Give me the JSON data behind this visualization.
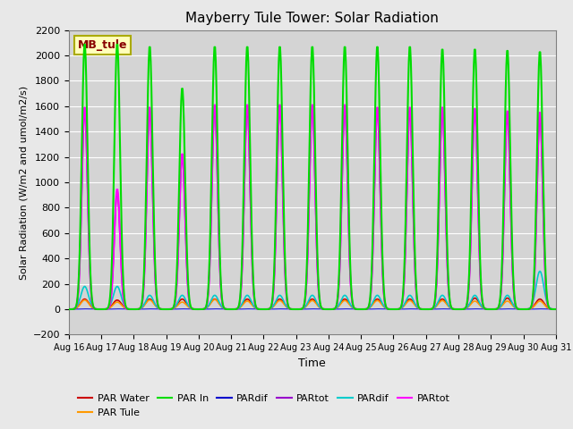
{
  "title": "Mayberry Tule Tower: Solar Radiation",
  "xlabel": "Time",
  "ylabel": "Solar Radiation (W/m2 and umol/m2/s)",
  "ylim": [
    -200,
    2200
  ],
  "yticks": [
    -200,
    0,
    200,
    400,
    600,
    800,
    1000,
    1200,
    1400,
    1600,
    1800,
    2000,
    2200
  ],
  "date_start": 16,
  "n_days": 15,
  "bg_color": "#e8e8e8",
  "plot_bg_color": "#d4d4d4",
  "legend_label": "MB_tule",
  "par_in_peaks": [
    2100,
    2100,
    2080,
    1750,
    2080,
    2080,
    2080,
    2080,
    2080,
    2080,
    2080,
    2060,
    2060,
    2050,
    2040
  ],
  "par_mag_peaks": [
    1600,
    950,
    1600,
    1230,
    1620,
    1620,
    1620,
    1620,
    1620,
    1600,
    1600,
    1600,
    1590,
    1570,
    1560
  ],
  "par_cyan_peaks": [
    180,
    180,
    110,
    110,
    110,
    110,
    110,
    110,
    110,
    110,
    110,
    110,
    110,
    110,
    300
  ],
  "par_water_peaks": [
    80,
    72,
    80,
    80,
    80,
    80,
    80,
    80,
    80,
    80,
    80,
    80,
    88,
    88,
    80
  ],
  "par_tule_peaks": [
    72,
    56,
    72,
    56,
    76,
    64,
    68,
    68,
    68,
    68,
    68,
    68,
    64,
    64,
    64
  ],
  "series_colors": {
    "par_in": "#00dd00",
    "par_magenta": "#ff00ff",
    "par_purple": "#9900cc",
    "par_cyan": "#00cccc",
    "par_water": "#cc0000",
    "par_tule": "#ff9900",
    "par_blue": "#0000cc"
  }
}
